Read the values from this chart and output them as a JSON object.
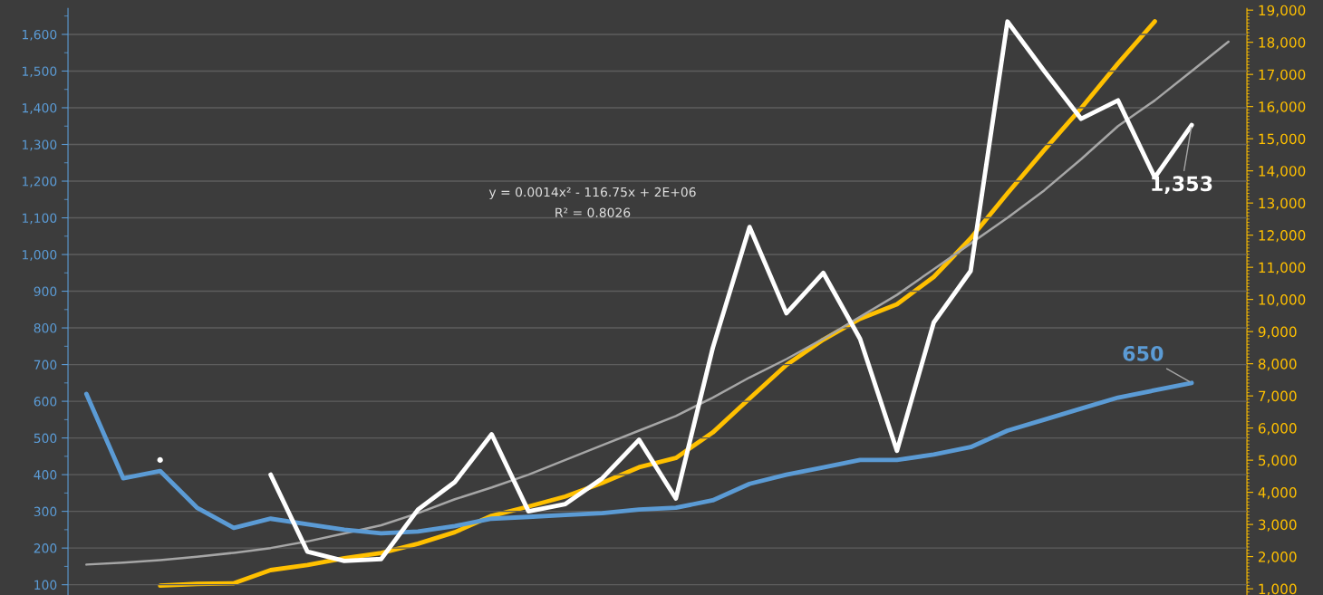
{
  "chart_data": {
    "type": "line",
    "categories": [
      null,
      null,
      null,
      null,
      null,
      null,
      null,
      null,
      null,
      null,
      null,
      null,
      null,
      null,
      null,
      null,
      null,
      null,
      null,
      null,
      null,
      null,
      null,
      null,
      null,
      null,
      null,
      null,
      null,
      null,
      null,
      null
    ],
    "series": [
      {
        "color": "#a6a6a6",
        "type": "line",
        "values": [
          155,
          160,
          167,
          176,
          187,
          200,
          218,
          240,
          262,
          295,
          333,
          365,
          400,
          440,
          480,
          520,
          560,
          610,
          665,
          715,
          770,
          830,
          890,
          960,
          1030,
          1100,
          1175,
          1260,
          1350,
          1420,
          1500,
          1580
        ]
      },
      {
        "color": "#5b9bd5",
        "values": [
          620,
          390,
          410,
          310,
          255,
          280,
          265,
          250,
          240,
          245,
          260,
          280,
          285,
          290,
          295,
          305,
          310,
          330,
          375,
          400,
          420,
          440,
          440,
          455,
          475,
          520,
          550,
          580,
          610,
          630,
          650,
          null
        ],
        "value_labels": [
          null,
          null,
          null,
          null,
          null,
          null,
          null,
          null,
          null,
          null,
          null,
          null,
          null,
          null,
          null,
          null,
          null,
          null,
          null,
          null,
          null,
          null,
          null,
          null,
          null,
          null,
          null,
          null,
          null,
          null,
          "650",
          null
        ]
      },
      {
        "color": "#ffffff",
        "values": [
          null,
          null,
          440,
          null,
          null,
          400,
          190,
          165,
          170,
          305,
          380,
          510,
          300,
          320,
          390,
          495,
          335,
          745,
          1075,
          840,
          950,
          770,
          465,
          815,
          955,
          1635,
          1500,
          1370,
          1420,
          1210,
          1353,
          null
        ],
        "value_labels": [
          null,
          null,
          null,
          null,
          null,
          null,
          null,
          null,
          null,
          null,
          null,
          null,
          null,
          null,
          null,
          null,
          null,
          null,
          null,
          null,
          null,
          null,
          null,
          null,
          null,
          null,
          null,
          null,
          null,
          null,
          "1,353",
          null
        ]
      },
      {
        "color": "#ffc000",
        "axis": "y2",
        "values": [
          null,
          null,
          1100,
          1150,
          1170,
          1580,
          1740,
          1950,
          2110,
          2400,
          2760,
          3270,
          3560,
          3870,
          4290,
          4780,
          5070,
          5860,
          6920,
          7960,
          8750,
          9400,
          9850,
          10700,
          11900,
          13300,
          14650,
          15950,
          17340,
          18650,
          null,
          null
        ]
      }
    ],
    "ylim": [
      72,
      1671
    ],
    "yticks": [
      100,
      200,
      300,
      400,
      500,
      600,
      700,
      800,
      900,
      {
        "value": 1000,
        "label": "1,000"
      },
      {
        "value": 1100,
        "label": "1,100"
      },
      {
        "value": 1200,
        "label": "1,200"
      },
      {
        "value": 1300,
        "label": "1,300"
      },
      {
        "value": 1400,
        "label": "1,400"
      },
      {
        "value": 1500,
        "label": "1,500"
      },
      {
        "value": 1600,
        "label": "1,600"
      }
    ],
    "y2lim": [
      806,
      19056
    ],
    "y2ticks": [
      {
        "value": 1000,
        "label": "1,000"
      },
      {
        "value": 2000,
        "label": "2,000"
      },
      {
        "value": 3000,
        "label": "3,000"
      },
      {
        "value": 4000,
        "label": "4,000"
      },
      {
        "value": 5000,
        "label": "5,000"
      },
      {
        "value": 6000,
        "label": "6,000"
      },
      {
        "value": 7000,
        "label": "7,000"
      },
      {
        "value": 8000,
        "label": "8,000"
      },
      {
        "value": 9000,
        "label": "9,000"
      },
      {
        "value": 10000,
        "label": "10,000"
      },
      {
        "value": 11000,
        "label": "11,000"
      },
      {
        "value": 12000,
        "label": "12,000"
      },
      {
        "value": 13000,
        "label": "13,000"
      },
      {
        "value": 14000,
        "label": "14,000"
      },
      {
        "value": 15000,
        "label": "15,000"
      },
      {
        "value": 16000,
        "label": "16,000"
      },
      {
        "value": 17000,
        "label": "17,000"
      },
      {
        "value": 18000,
        "label": "18,000"
      },
      {
        "value": 19000,
        "label": "19,000"
      }
    ],
    "annotations": [
      "y = 0.0014x² - 116.75x + 2E+06",
      "R² = 0.8026"
    ],
    "grid": "y",
    "tick_labels": "y"
  }
}
